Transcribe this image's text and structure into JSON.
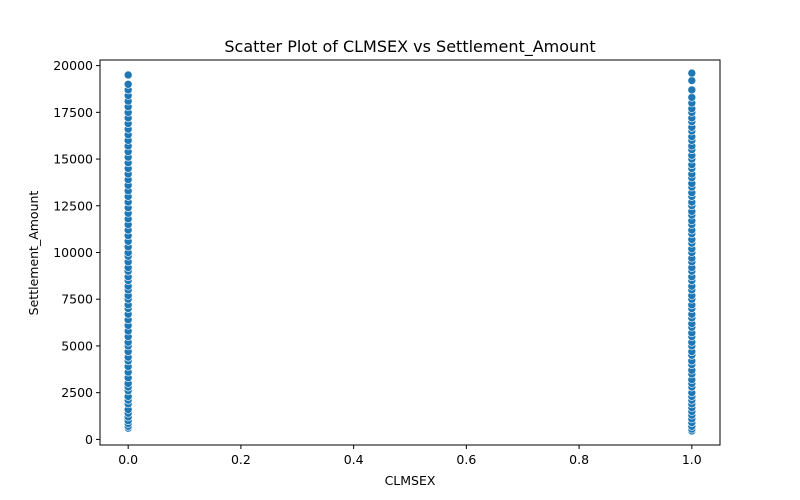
{
  "chart_data": {
    "type": "scatter",
    "title": "Scatter Plot of CLMSEX vs Settlement_Amount",
    "xlabel": "CLMSEX",
    "ylabel": "Settlement_Amount",
    "xlim": [
      -0.05,
      1.05
    ],
    "ylim": [
      -300,
      20300
    ],
    "xticks": [
      0.0,
      0.2,
      0.4,
      0.6,
      0.8,
      1.0
    ],
    "xtick_labels": [
      "0.0",
      "0.2",
      "0.4",
      "0.6",
      "0.8",
      "1.0"
    ],
    "yticks": [
      0,
      2500,
      5000,
      7500,
      10000,
      12500,
      15000,
      17500,
      20000
    ],
    "ytick_labels": [
      "0",
      "2500",
      "5000",
      "7500",
      "10000",
      "12500",
      "15000",
      "17500",
      "20000"
    ],
    "grid": false,
    "marker_color": "#1f77b4",
    "series": [
      {
        "x": [
          0,
          0,
          0,
          0,
          0,
          0,
          0,
          0,
          0,
          0,
          0,
          0,
          0,
          0,
          0,
          0,
          0,
          0,
          0,
          0,
          0,
          0,
          0,
          0,
          0,
          0,
          0,
          0,
          0,
          0,
          0,
          0,
          0,
          0,
          0,
          0,
          0,
          0,
          0,
          0,
          0,
          0,
          0,
          0,
          0,
          0,
          0,
          0,
          0,
          0,
          0,
          0,
          0,
          0,
          0,
          0,
          0,
          0,
          0,
          0,
          0,
          0,
          0,
          0,
          0,
          0,
          0,
          0,
          0,
          0
        ],
        "y": [
          600,
          700,
          850,
          1000,
          1200,
          1400,
          1600,
          1900,
          2100,
          2300,
          2600,
          2800,
          3000,
          3300,
          3600,
          3900,
          4200,
          4400,
          4700,
          5000,
          5200,
          5500,
          5800,
          6100,
          6400,
          6700,
          7000,
          7200,
          7500,
          7700,
          8000,
          8200,
          8500,
          8700,
          9000,
          9200,
          9500,
          9800,
          10000,
          10300,
          10600,
          10900,
          11200,
          11500,
          11800,
          12100,
          12400,
          12700,
          13000,
          13300,
          13600,
          13900,
          14200,
          14500,
          14800,
          15100,
          15400,
          15700,
          16000,
          16300,
          16600,
          16900,
          17200,
          17500,
          17800,
          18100,
          18400,
          18700,
          19000,
          19500
        ]
      },
      {
        "x": [
          1,
          1,
          1,
          1,
          1,
          1,
          1,
          1,
          1,
          1,
          1,
          1,
          1,
          1,
          1,
          1,
          1,
          1,
          1,
          1,
          1,
          1,
          1,
          1,
          1,
          1,
          1,
          1,
          1,
          1,
          1,
          1,
          1,
          1,
          1,
          1,
          1,
          1,
          1,
          1,
          1,
          1,
          1,
          1,
          1,
          1,
          1,
          1,
          1,
          1,
          1,
          1,
          1,
          1,
          1,
          1,
          1,
          1,
          1,
          1,
          1,
          1,
          1,
          1,
          1,
          1,
          1,
          1,
          1,
          1,
          1,
          1,
          1,
          1,
          1,
          1,
          1,
          1
        ],
        "y": [
          450,
          550,
          700,
          900,
          1100,
          1300,
          1500,
          1700,
          1900,
          2100,
          2300,
          2500,
          2800,
          3000,
          3200,
          3500,
          3700,
          4000,
          4200,
          4500,
          4700,
          5000,
          5200,
          5500,
          5700,
          6000,
          6200,
          6500,
          6700,
          7000,
          7200,
          7500,
          7700,
          8000,
          8200,
          8500,
          8700,
          9000,
          9200,
          9500,
          9700,
          10000,
          10200,
          10500,
          10700,
          11000,
          11200,
          11500,
          11700,
          12000,
          12200,
          12500,
          12700,
          13000,
          13200,
          13500,
          13700,
          14000,
          14200,
          14500,
          14700,
          15000,
          15200,
          15500,
          15700,
          16000,
          16200,
          16500,
          16700,
          17000,
          17200,
          17500,
          17700,
          18000,
          18300,
          18700,
          19200,
          19600
        ]
      }
    ]
  }
}
